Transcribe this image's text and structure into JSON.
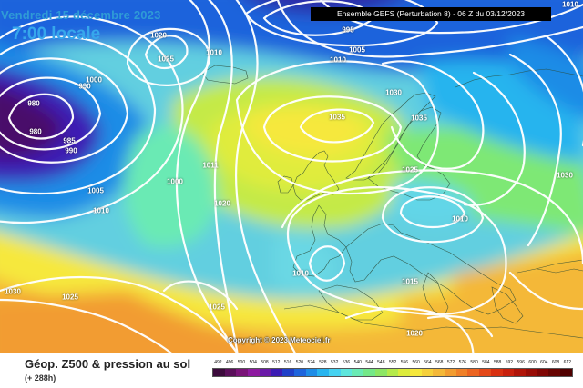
{
  "header": {
    "date": "Vendredi 15 décembre 2023",
    "local_time": "7:00 locale",
    "run_info": "Ensemble GEFS  (Perturbation 8)  -  06 Z du 03/12/2023"
  },
  "map": {
    "copyright": "Copyright © 2023 Meteociel.fr",
    "isobar_labels": [
      "1020",
      "1025",
      "1010",
      "995",
      "1005",
      "1010",
      "1010",
      "1000",
      "990",
      "980",
      "980",
      "985",
      "990",
      "1030",
      "1035",
      "1035",
      "1011",
      "1000",
      "1020",
      "1025",
      "1005",
      "1010",
      "1010",
      "1030",
      "1010",
      "1025",
      "1015",
      "1030",
      "1025",
      "1020"
    ]
  },
  "footer": {
    "title": "Géop. Z500 & pression au sol",
    "subtitle": "(+ 288h)"
  },
  "scale": {
    "labels": [
      "492",
      "496",
      "500",
      "504",
      "508",
      "512",
      "516",
      "520",
      "524",
      "528",
      "532",
      "536",
      "540",
      "544",
      "548",
      "552",
      "556",
      "560",
      "564",
      "568",
      "572",
      "576",
      "580",
      "584",
      "588",
      "592",
      "596",
      "600",
      "604",
      "608",
      "612"
    ],
    "colors": [
      "#3c0b3c",
      "#5a0f5a",
      "#7a1478",
      "#8e1aa0",
      "#6a1aa8",
      "#3c1cb4",
      "#2040c8",
      "#1e64dc",
      "#1e8ce6",
      "#28b4ee",
      "#46d2f0",
      "#5ee6dc",
      "#6aeab4",
      "#74e888",
      "#8ce664",
      "#b4ea4a",
      "#dcec3c",
      "#f6e83c",
      "#f6d03a",
      "#f4b838",
      "#f29c30",
      "#f08028",
      "#ec6420",
      "#e44818",
      "#d83010",
      "#c8200c",
      "#b01408",
      "#980c06",
      "#800604",
      "#680402",
      "#500000"
    ]
  }
}
